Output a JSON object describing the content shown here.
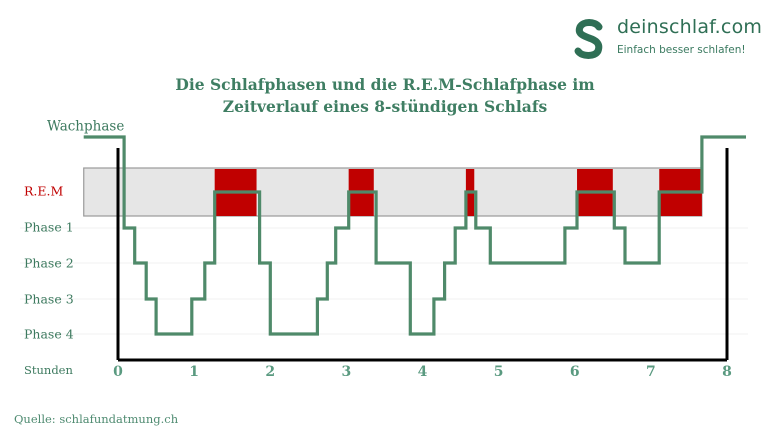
{
  "brand": {
    "name": "deinschlaf.com",
    "tagline": "Einfach besser schlafen!",
    "color": "#2f6f55"
  },
  "title_line1": "Die Schlafphasen und die R.E.M-Schlafphase im",
  "title_line2": "Zeitverlauf eines 8-stündigen Schlafs",
  "source": "Quelle: schlafundatmung.ch",
  "chart_data": {
    "type": "line",
    "title": "Die Schlafphasen und die R.E.M-Schlafphase im Zeitverlauf eines 8-stündigen Schlafs",
    "xlabel": "Stunden",
    "x_ticks": [
      0,
      1,
      2,
      3,
      4,
      5,
      6,
      7,
      8
    ],
    "xlim": [
      -0.45,
      8.25
    ],
    "levels": [
      "Wachphase",
      "R.E.M",
      "Phase 1",
      "Phase 2",
      "Phase 3",
      "Phase 4"
    ],
    "level_values": [
      0,
      1,
      2,
      3,
      4,
      5
    ],
    "series": [
      {
        "color": "#4f8a6a",
        "points": [
          [
            -0.45,
            0
          ],
          [
            0.08,
            0
          ],
          [
            0.08,
            2
          ],
          [
            0.22,
            2
          ],
          [
            0.22,
            3
          ],
          [
            0.37,
            3
          ],
          [
            0.37,
            4
          ],
          [
            0.5,
            4
          ],
          [
            0.5,
            5
          ],
          [
            0.97,
            5
          ],
          [
            0.97,
            4
          ],
          [
            1.14,
            4
          ],
          [
            1.14,
            3
          ],
          [
            1.27,
            3
          ],
          [
            1.27,
            1
          ],
          [
            1.86,
            1
          ],
          [
            1.86,
            3
          ],
          [
            2.0,
            3
          ],
          [
            2.0,
            5
          ],
          [
            2.62,
            5
          ],
          [
            2.62,
            4
          ],
          [
            2.75,
            4
          ],
          [
            2.75,
            3
          ],
          [
            2.86,
            3
          ],
          [
            2.86,
            2
          ],
          [
            3.03,
            2
          ],
          [
            3.03,
            1
          ],
          [
            3.39,
            1
          ],
          [
            3.39,
            3
          ],
          [
            3.84,
            3
          ],
          [
            3.84,
            5
          ],
          [
            4.15,
            5
          ],
          [
            4.15,
            4
          ],
          [
            4.29,
            4
          ],
          [
            4.29,
            3
          ],
          [
            4.43,
            3
          ],
          [
            4.43,
            2
          ],
          [
            4.57,
            2
          ],
          [
            4.57,
            1
          ],
          [
            4.7,
            1
          ],
          [
            4.7,
            2
          ],
          [
            4.89,
            2
          ],
          [
            4.89,
            3
          ],
          [
            5.87,
            3
          ],
          [
            5.87,
            2
          ],
          [
            6.03,
            2
          ],
          [
            6.03,
            1
          ],
          [
            6.52,
            1
          ],
          [
            6.52,
            2
          ],
          [
            6.66,
            2
          ],
          [
            6.66,
            3
          ],
          [
            7.11,
            3
          ],
          [
            7.11,
            1
          ],
          [
            7.67,
            1
          ],
          [
            7.67,
            0
          ],
          [
            8.25,
            0
          ]
        ]
      }
    ],
    "rem_band": {
      "label": "R.E.M",
      "xlim": [
        -0.45,
        7.67
      ],
      "fill": "#e6e6e6"
    },
    "rem_blocks": {
      "color": "#c00000",
      "segments": [
        [
          1.27,
          1.82
        ],
        [
          3.03,
          3.36
        ],
        [
          4.57,
          4.68
        ],
        [
          6.03,
          6.5
        ],
        [
          7.11,
          7.67
        ]
      ]
    },
    "axis_color": "#000000",
    "grid": true
  }
}
